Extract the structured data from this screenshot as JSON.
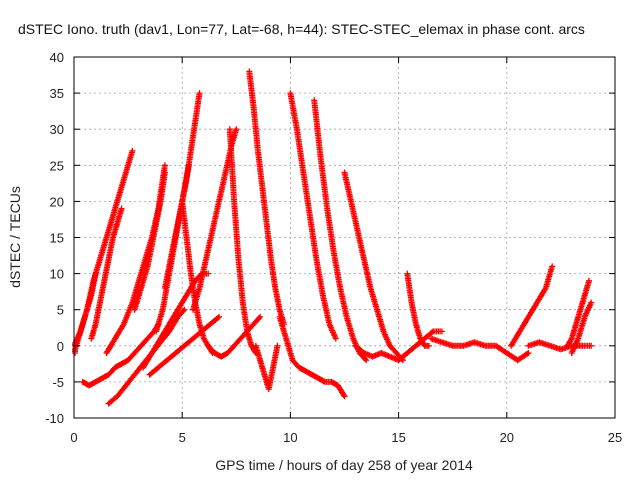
{
  "chart_data": {
    "type": "scatter",
    "title": "dSTEC Iono. truth (dav1, Lon=77, Lat=-68, h=44): STEC-STEC_elemax in phase cont. arcs",
    "xlabel": "GPS time / hours of day 258 of year 2014",
    "ylabel": "dSTEC  / TECUs",
    "xlim": [
      0,
      25
    ],
    "ylim": [
      -10,
      40
    ],
    "xticks": [
      0,
      5,
      10,
      15,
      20,
      25
    ],
    "yticks": [
      -10,
      -5,
      0,
      5,
      10,
      15,
      20,
      25,
      30,
      35,
      40
    ],
    "grid": true,
    "marker": "+",
    "color": "#ff0000",
    "series": [
      {
        "x": [
          0.0,
          0.3,
          0.6,
          0.9,
          1.2,
          1.5,
          1.8,
          2.1,
          2.4,
          2.7
        ],
        "y": [
          0,
          2,
          5,
          9,
          12,
          15,
          18,
          21,
          24,
          27
        ]
      },
      {
        "x": [
          0.0,
          0.2,
          0.4,
          0.6,
          0.8,
          1.0
        ],
        "y": [
          -1,
          1,
          3,
          5,
          7,
          10
        ]
      },
      {
        "x": [
          0.4,
          0.7,
          1.0,
          1.3,
          1.6,
          1.9,
          2.2,
          2.5,
          2.8,
          3.1,
          3.4,
          3.7,
          3.9
        ],
        "y": [
          -5,
          -5.5,
          -5,
          -4.5,
          -4,
          -3,
          -2.5,
          -2,
          -1,
          0,
          1,
          2,
          3
        ]
      },
      {
        "x": [
          0.8,
          1.0,
          1.2,
          1.4,
          1.6,
          1.8,
          2.0,
          2.2
        ],
        "y": [
          1,
          3,
          6,
          9,
          12,
          15,
          17,
          19
        ]
      },
      {
        "x": [
          1.6,
          2.0,
          2.4,
          2.8,
          3.2,
          3.6,
          4.0,
          4.4,
          4.8,
          5.1
        ],
        "y": [
          -8,
          -7,
          -5.5,
          -4,
          -2.5,
          -1,
          0.5,
          2,
          4,
          5
        ]
      },
      {
        "x": [
          1.5,
          1.9,
          2.3,
          2.7,
          3.0,
          3.3,
          3.6,
          3.9,
          4.2
        ],
        "y": [
          -1,
          1,
          3,
          6,
          9,
          12,
          15,
          19,
          25
        ]
      },
      {
        "x": [
          2.8,
          3.0,
          3.2,
          3.4,
          3.6,
          3.8,
          4.0,
          4.2
        ],
        "y": [
          5,
          7,
          9,
          11,
          14,
          17,
          20,
          24
        ]
      },
      {
        "x": [
          3.2,
          3.6,
          4.0,
          4.4,
          4.8,
          5.2,
          5.6,
          5.9,
          6.2
        ],
        "y": [
          -3,
          -1,
          1,
          3,
          5,
          7,
          9,
          10,
          10
        ]
      },
      {
        "x": [
          3.8,
          4.1,
          4.4,
          4.7,
          5.0,
          5.3
        ],
        "y": [
          2,
          5,
          10,
          15,
          20,
          25
        ]
      },
      {
        "x": [
          4.2,
          4.4,
          4.6,
          4.8,
          5.0,
          5.2,
          5.4,
          5.6,
          5.8
        ],
        "y": [
          8,
          11,
          14,
          17,
          20,
          23,
          27,
          31,
          35
        ]
      },
      {
        "x": [
          3.5,
          3.9,
          4.3,
          4.7,
          5.1,
          5.5,
          5.9,
          6.3,
          6.7
        ],
        "y": [
          -4,
          -3,
          -2,
          -1,
          0,
          1,
          2,
          3,
          4
        ]
      },
      {
        "x": [
          5.0,
          5.2,
          5.4,
          5.6,
          5.8,
          6.0,
          6.2,
          6.4
        ],
        "y": [
          20,
          15,
          10,
          6,
          3,
          1,
          0,
          -1
        ]
      },
      {
        "x": [
          5.5,
          5.8,
          6.1,
          6.4,
          6.7,
          7.0,
          7.3,
          7.5
        ],
        "y": [
          5,
          8,
          12,
          16,
          20,
          24,
          28,
          30
        ]
      },
      {
        "x": [
          6.2,
          6.5,
          6.8,
          7.1,
          7.4,
          7.7,
          8.0,
          8.3,
          8.6
        ],
        "y": [
          0,
          -1,
          -1.5,
          -1,
          0,
          1,
          2,
          3,
          4
        ]
      },
      {
        "x": [
          7.2,
          7.4,
          7.6,
          7.8,
          8.0,
          8.2,
          8.4
        ],
        "y": [
          30,
          20,
          12,
          6,
          2,
          0,
          -1
        ]
      },
      {
        "x": [
          8.1,
          8.3,
          8.5,
          8.7,
          8.9,
          9.1,
          9.3,
          9.5,
          9.7
        ],
        "y": [
          38,
          33,
          27,
          22,
          17,
          12,
          8,
          5,
          3
        ]
      },
      {
        "x": [
          8.4,
          8.6,
          8.8,
          9.0,
          9.2,
          9.4
        ],
        "y": [
          0,
          -2,
          -4,
          -6,
          -3,
          0
        ]
      },
      {
        "x": [
          9.5,
          9.8,
          10.1,
          10.4,
          10.7,
          11.0,
          11.3,
          11.6,
          11.9,
          12.2,
          12.5
        ],
        "y": [
          4,
          1,
          -2,
          -3,
          -3.5,
          -4,
          -4.5,
          -5,
          -5,
          -5.5,
          -7
        ]
      },
      {
        "x": [
          10.0,
          10.3,
          10.6,
          10.9,
          11.2,
          11.5,
          11.8,
          12.1
        ],
        "y": [
          35,
          30,
          24,
          18,
          12,
          7,
          3,
          1
        ]
      },
      {
        "x": [
          11.1,
          11.4,
          11.7,
          12.0,
          12.3,
          12.6,
          12.9,
          13.2,
          13.5
        ],
        "y": [
          34,
          26,
          19,
          13,
          8,
          4,
          1,
          -1,
          -2
        ]
      },
      {
        "x": [
          12.5,
          12.8,
          13.1,
          13.4,
          13.7,
          14.0,
          14.3,
          14.6,
          14.9,
          15.2
        ],
        "y": [
          24,
          20,
          16,
          12,
          8,
          5,
          2,
          0,
          -1,
          -2
        ]
      },
      {
        "x": [
          13.0,
          13.4,
          13.8,
          14.2,
          14.6,
          15.0,
          15.4,
          15.8,
          16.2,
          16.6,
          17.0
        ],
        "y": [
          0,
          -1,
          -1.5,
          -1,
          -1.5,
          -2,
          -1,
          0,
          1,
          2,
          2
        ]
      },
      {
        "x": [
          15.4,
          15.6,
          15.8,
          16.0,
          16.2,
          16.4
        ],
        "y": [
          10,
          6,
          3,
          1,
          0,
          0
        ]
      },
      {
        "x": [
          16.5,
          17.0,
          17.5,
          18.0,
          18.5,
          19.0,
          19.5,
          20.0,
          20.5,
          21.0
        ],
        "y": [
          1,
          0.5,
          0,
          0,
          0.5,
          0,
          0,
          -1,
          -2,
          -1
        ]
      },
      {
        "x": [
          20.2,
          20.6,
          21.0,
          21.4,
          21.8,
          22.1
        ],
        "y": [
          0,
          2,
          4,
          6,
          8,
          11
        ]
      },
      {
        "x": [
          21.0,
          21.5,
          22.0,
          22.5,
          23.0,
          23.5,
          23.9
        ],
        "y": [
          0,
          0.5,
          0,
          -0.5,
          0,
          0,
          0
        ]
      },
      {
        "x": [
          22.8,
          23.0,
          23.2,
          23.4,
          23.6,
          23.8
        ],
        "y": [
          0,
          1,
          3,
          5,
          7,
          9
        ]
      },
      {
        "x": [
          23.0,
          23.3,
          23.6,
          23.9
        ],
        "y": [
          -1,
          1,
          4,
          6
        ]
      }
    ]
  }
}
